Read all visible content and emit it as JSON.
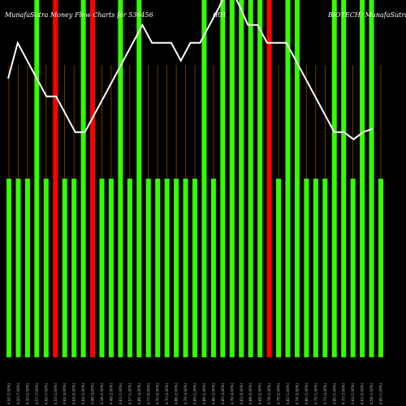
{
  "header": {
    "left": "MunafaSutra  Money Flow  Charts for 536456",
    "middle": "(RH",
    "right": "BIOTECH)  MunafaSutra"
  },
  "chart_data": {
    "type": "bar",
    "title": "MunafaSutra  Money Flow  Charts for 536456",
    "ylim": [
      0,
      100
    ],
    "colors": {
      "green": "#33ff00",
      "red": "#ff0000",
      "line": "#ffffff",
      "grid": "#b35900",
      "background": "#000000"
    },
    "x_tick_labels": [
      "4.00 (2.00%)",
      "4.20 (7.00%)",
      "4.30 (2.00%)",
      "4.57 (7.00%)",
      "4.65 (7.00%)",
      "4.53 (1.00%)",
      "4.64 (4.00%)",
      "4.64 (0.00%)",
      "4.64 (3.00%)",
      "4.48 (4.00%)",
      "4.38 (0.00%)",
      "4.48 (3.00%)",
      "4.63 (1.00%)",
      "4.57 (1.00%)",
      "4.89 (4.00%)",
      "4.77 (0.00%)",
      "4.70 (0.00%)",
      "4.70 (2.00%)",
      "4.86 (2.00%)",
      "4.79 (4.00%)",
      "4.89 (1.00%)",
      "4.89 (1.00%)",
      "4.86 (3.00%)",
      "4.85 (3.00%)",
      "4.79 (4.00%)",
      "4.83 (5.00%)",
      "4.88 (0.00%)",
      "4.69 (2.00%)",
      "4.78 (2.00%)",
      "4.79 (2.00%)",
      "4.82 (1.00%)",
      "4.74 (3.00%)",
      "4.80 (1.00%)",
      "4.79 (1.00%)",
      "4.73 (4.00%)",
      "4.80 (1.00%)",
      "4.75 (3.00%)",
      "4.64 (1.00%)",
      "4.63 (0.00%)",
      "4.58 (1.00%)",
      "4.60 (1.00%)"
    ],
    "bar_colors": [
      "green",
      "green",
      "green",
      "green",
      "green",
      "red",
      "green",
      "green",
      "green",
      "red",
      "green",
      "green",
      "green",
      "green",
      "green",
      "green",
      "green",
      "green",
      "green",
      "green",
      "green",
      "green",
      "green",
      "green",
      "green",
      "green",
      "green",
      "green",
      "red",
      "green",
      "green",
      "green",
      "green",
      "green",
      "green",
      "green",
      "green",
      "green",
      "green",
      "green",
      "green"
    ],
    "values": [
      50,
      50,
      50,
      100,
      50,
      100,
      50,
      50,
      100,
      100,
      50,
      50,
      100,
      50,
      100,
      50,
      50,
      50,
      50,
      50,
      50,
      100,
      50,
      100,
      100,
      100,
      100,
      100,
      100,
      50,
      100,
      100,
      50,
      50,
      50,
      100,
      100,
      50,
      100,
      100,
      50
    ],
    "line_values": [
      78,
      88,
      83,
      78,
      73,
      73,
      68,
      63,
      63,
      68,
      73,
      78,
      83,
      88,
      93,
      88,
      88,
      88,
      83,
      88,
      88,
      93,
      98,
      104,
      99,
      93,
      93,
      88,
      88,
      88,
      83,
      78,
      73,
      68,
      63,
      63,
      61,
      63,
      64
    ]
  }
}
